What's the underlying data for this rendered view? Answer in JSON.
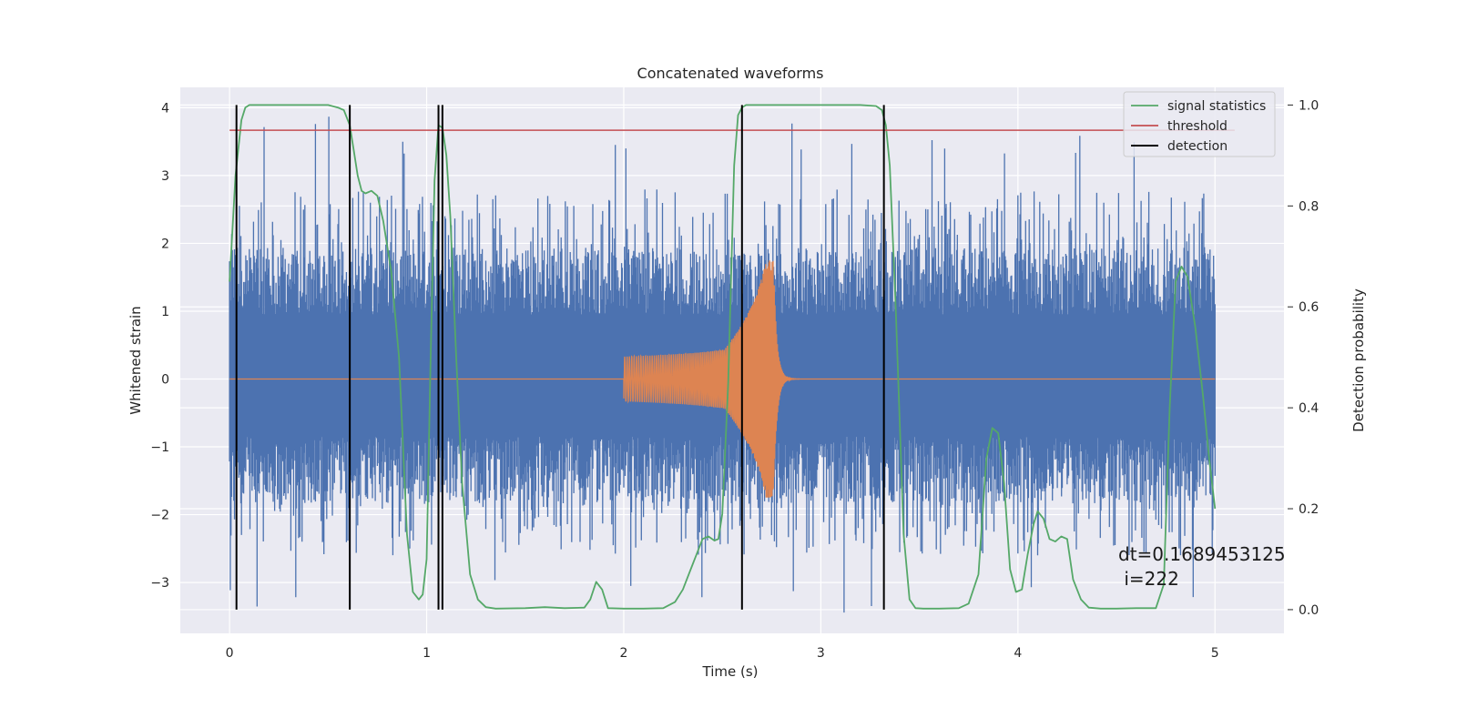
{
  "chart_data": {
    "type": "line",
    "title": "Concatenated waveforms",
    "xlabel": "Time (s)",
    "ylabel": "Whitened strain",
    "ylabel_right": "Detection probability",
    "xlim": [
      -0.25,
      5.35
    ],
    "ylim": [
      -3.75,
      4.3
    ],
    "ylim_right": [
      -0.047,
      1.035
    ],
    "x_ticks": [
      0,
      1,
      2,
      3,
      4,
      5
    ],
    "y_ticks": [
      -3,
      -2,
      -1,
      0,
      1,
      2,
      3,
      4
    ],
    "y_right_ticks": [
      0.0,
      0.2,
      0.4,
      0.6,
      0.8,
      1.0
    ],
    "x_tick_labels": [
      "0",
      "1",
      "2",
      "3",
      "4",
      "5"
    ],
    "y_tick_labels": [
      "−3",
      "−2",
      "−1",
      "0",
      "1",
      "2",
      "3",
      "4"
    ],
    "y_right_tick_labels": [
      "0.0",
      "0.2",
      "0.4",
      "0.6",
      "0.8",
      "1.0"
    ],
    "grid": true,
    "legend_position": "top-right",
    "colors": {
      "background": "#eaeaf2",
      "grid": "#ffffff",
      "noise": "#4c72b0",
      "waveform": "#dd8452",
      "signal_statistics": "#55a868",
      "threshold": "#c44e52",
      "detection": "#000000"
    },
    "noise_band": {
      "x_range": [
        0,
        5
      ],
      "core_range": [
        -0.85,
        0.95
      ],
      "peak_range": [
        -3.45,
        3.9
      ]
    },
    "waveform": {
      "x_start": 2.0,
      "x_merger": 2.76,
      "x_end": 3.0,
      "peak_amplitude": 1.75
    },
    "series": [
      {
        "name": "signal statistics",
        "axis": "right",
        "x": [
          0,
          0.03,
          0.06,
          0.08,
          0.1,
          0.2,
          0.3,
          0.4,
          0.5,
          0.55,
          0.58,
          0.61,
          0.63,
          0.65,
          0.67,
          0.69,
          0.72,
          0.75,
          0.78,
          0.82,
          0.86,
          0.9,
          0.93,
          0.96,
          0.98,
          1.0,
          1.02,
          1.04,
          1.06,
          1.08,
          1.1,
          1.12,
          1.15,
          1.18,
          1.22,
          1.26,
          1.3,
          1.35,
          1.5,
          1.6,
          1.7,
          1.8,
          1.83,
          1.86,
          1.89,
          1.92,
          2.0,
          2.1,
          2.2,
          2.26,
          2.3,
          2.35,
          2.4,
          2.43,
          2.46,
          2.48,
          2.5,
          2.53,
          2.56,
          2.58,
          2.6,
          2.62,
          2.65,
          2.7,
          2.8,
          3.0,
          3.2,
          3.28,
          3.31,
          3.33,
          3.35,
          3.38,
          3.42,
          3.45,
          3.48,
          3.52,
          3.6,
          3.7,
          3.75,
          3.8,
          3.84,
          3.87,
          3.9,
          3.93,
          3.96,
          3.99,
          4.02,
          4.05,
          4.08,
          4.1,
          4.13,
          4.16,
          4.19,
          4.22,
          4.25,
          4.28,
          4.32,
          4.36,
          4.42,
          4.5,
          4.6,
          4.7,
          4.74,
          4.77,
          4.8,
          4.83,
          4.86,
          4.9,
          4.94,
          4.97,
          5.0
        ],
        "y": [
          0.65,
          0.86,
          0.97,
          0.995,
          1.0,
          1.0,
          1.0,
          1.0,
          1.0,
          0.995,
          0.99,
          0.96,
          0.91,
          0.86,
          0.83,
          0.825,
          0.83,
          0.82,
          0.77,
          0.67,
          0.5,
          0.15,
          0.035,
          0.02,
          0.03,
          0.1,
          0.5,
          0.85,
          0.96,
          0.955,
          0.9,
          0.78,
          0.5,
          0.25,
          0.07,
          0.02,
          0.005,
          0.002,
          0.003,
          0.005,
          0.003,
          0.004,
          0.02,
          0.055,
          0.04,
          0.003,
          0.002,
          0.002,
          0.003,
          0.015,
          0.04,
          0.09,
          0.14,
          0.145,
          0.137,
          0.14,
          0.19,
          0.45,
          0.88,
          0.98,
          0.995,
          1.0,
          1.0,
          1.0,
          1.0,
          1.0,
          1.0,
          0.998,
          0.99,
          0.96,
          0.88,
          0.6,
          0.15,
          0.02,
          0.003,
          0.002,
          0.002,
          0.003,
          0.012,
          0.07,
          0.3,
          0.36,
          0.35,
          0.25,
          0.08,
          0.035,
          0.04,
          0.11,
          0.17,
          0.195,
          0.18,
          0.14,
          0.135,
          0.145,
          0.14,
          0.06,
          0.02,
          0.004,
          0.002,
          0.002,
          0.003,
          0.003,
          0.05,
          0.4,
          0.65,
          0.68,
          0.66,
          0.56,
          0.42,
          0.3,
          0.2
        ]
      },
      {
        "name": "threshold",
        "axis": "right",
        "x": [
          0,
          5.1
        ],
        "y": [
          0.95,
          0.95
        ]
      },
      {
        "name": "detection",
        "axis": "right",
        "x": [
          0.035,
          0.61,
          1.06,
          1.08,
          2.6,
          3.32
        ],
        "y_range": [
          0.0,
          1.0
        ]
      }
    ],
    "annotations": [
      "dt=0.1689453125",
      " i=222"
    ]
  }
}
